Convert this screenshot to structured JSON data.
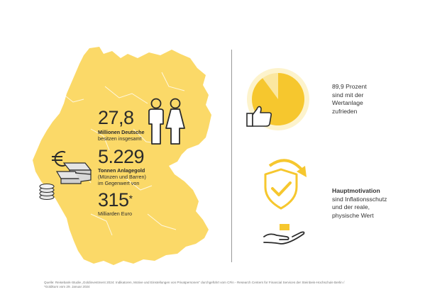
{
  "stats": {
    "people_number": "27,8",
    "people_line1": "Millionen Deutsche",
    "people_line2": "besitzen insgesamt",
    "gold_number": "5.229",
    "gold_line1": "Tonnen Anlagegold",
    "gold_line2": "(Münzen und Barren)",
    "gold_line3": "im Gegenwert von",
    "value_number": "315",
    "value_mark": "*",
    "value_line1": "Milliarden Euro"
  },
  "satisfaction": {
    "percent_label": "89,9 Prozent",
    "line1": "sind mit der",
    "line2": "Wertanlage",
    "line3": "zufrieden",
    "fraction": 0.899
  },
  "motivation": {
    "title": "Hauptmotivation",
    "line1": "sind Inflationsschutz",
    "line2": "und der reale,",
    "line3": "physische Wert"
  },
  "source": {
    "line1": "Quelle: Reisebank-Studie „Goldinvestment 2024: Indikatoren, Motive und Einstellungen von Privatpersonen“ durchgeführt vom CFin - Research Centers for Financial Services der Steinbeis-Hochschule Berlin /",
    "line2": "*Goldkurs vom 29. Januar 2024"
  },
  "colors": {
    "map_yellow": "#fbd968",
    "gold": "#f6c72e",
    "text": "#2b2b2b"
  },
  "icons": [
    "germany-map",
    "person-male-icon",
    "person-female-icon",
    "euro-icon",
    "gold-bars-icon",
    "coin-stack-icon",
    "thumbs-up-icon",
    "shield-check-icon",
    "hand-icon",
    "curved-arrow-icon"
  ]
}
